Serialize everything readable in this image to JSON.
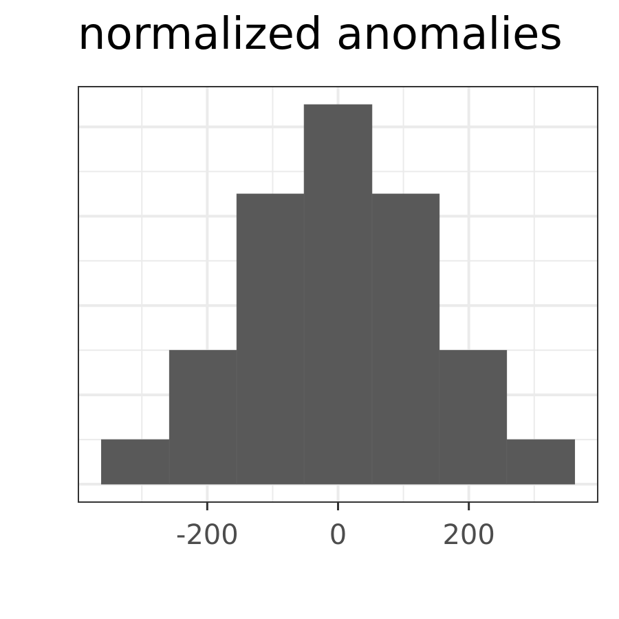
{
  "chart_data": {
    "type": "bar",
    "title": "normalized anomalies",
    "xlabel": "",
    "ylabel": "",
    "bins": [
      {
        "x0": -362,
        "x1": -258,
        "count": 2
      },
      {
        "x0": -258,
        "x1": -155,
        "count": 6
      },
      {
        "x0": -155,
        "x1": -52,
        "count": 13
      },
      {
        "x0": -52,
        "x1": 52,
        "count": 17
      },
      {
        "x0": 52,
        "x1": 155,
        "count": 13
      },
      {
        "x0": 155,
        "x1": 258,
        "count": 6
      },
      {
        "x0": 258,
        "x1": 362,
        "count": 2
      }
    ],
    "xlim": [
      -397,
      397
    ],
    "ylim": [
      -0.8,
      17.8
    ],
    "x_ticks": [
      -200,
      0,
      200
    ],
    "x_minor_ticks": [
      -300,
      -100,
      100,
      300
    ],
    "y_ticks": [
      0,
      4,
      8,
      12,
      16
    ],
    "y_minor_ticks": [
      2,
      6,
      10,
      14
    ],
    "show_y_tick_labels": false,
    "grid": true,
    "colors": {
      "bar": "#595959",
      "grid": "#ebebeb",
      "border": "#333333",
      "tick_label": "#4d4d4d"
    }
  }
}
